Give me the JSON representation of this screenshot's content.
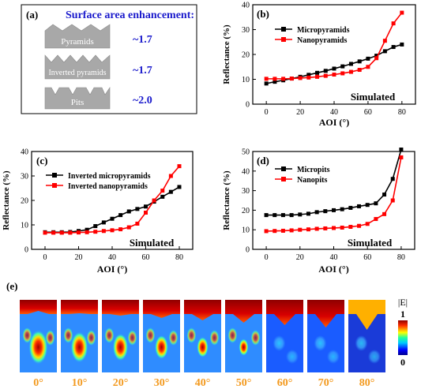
{
  "panel_a": {
    "letter": "(a)",
    "title": "Surface area enhancement:",
    "rows": [
      {
        "label": "Pyramids",
        "value": "~1.7",
        "shape": "pyramids"
      },
      {
        "label": "Inverted pyramids",
        "value": "~1.7",
        "shape": "inverted"
      },
      {
        "label": "Pits",
        "value": "~2.0",
        "shape": "pits"
      }
    ]
  },
  "chart_data": [
    {
      "panel": "(b)",
      "type": "line",
      "xlabel": "AOI (°)",
      "ylabel": "Reflectance (%)",
      "annotation": "Simulated",
      "xlim": [
        -8,
        88
      ],
      "ylim": [
        0,
        40
      ],
      "xticks": [
        0,
        20,
        40,
        60,
        80
      ],
      "yticks": [
        0,
        10,
        20,
        30,
        40
      ],
      "series": [
        {
          "name": "Micropyramids",
          "color": "#000000",
          "marker": "square",
          "x": [
            0,
            5,
            10,
            15,
            20,
            25,
            30,
            35,
            40,
            45,
            50,
            55,
            60,
            65,
            70,
            75,
            80
          ],
          "y": [
            8.3,
            9.0,
            9.6,
            10.3,
            11.0,
            11.8,
            12.6,
            13.4,
            14.3,
            15.2,
            16.2,
            17.2,
            18.3,
            19.5,
            21.3,
            23.0,
            24.0
          ]
        },
        {
          "name": "Nanopyramids",
          "color": "#ff0000",
          "marker": "square",
          "x": [
            0,
            5,
            10,
            15,
            20,
            25,
            30,
            35,
            40,
            45,
            50,
            55,
            60,
            65,
            70,
            75,
            80
          ],
          "y": [
            10.2,
            10.2,
            10.2,
            10.3,
            10.5,
            10.7,
            11.0,
            11.4,
            11.9,
            12.4,
            13.0,
            13.8,
            15.0,
            18.5,
            25.5,
            32.5,
            36.8
          ]
        }
      ]
    },
    {
      "panel": "(c)",
      "type": "line",
      "xlabel": "AOI (°)",
      "ylabel": "Reflectance (%)",
      "annotation": "Simulated",
      "xlim": [
        -8,
        88
      ],
      "ylim": [
        0,
        40
      ],
      "xticks": [
        0,
        20,
        40,
        60,
        80
      ],
      "yticks": [
        0,
        10,
        20,
        30,
        40
      ],
      "series": [
        {
          "name": "Inverted micropyramids",
          "color": "#000000",
          "marker": "square",
          "x": [
            0,
            5,
            10,
            15,
            20,
            25,
            30,
            35,
            40,
            45,
            50,
            55,
            60,
            65,
            70,
            75,
            80
          ],
          "y": [
            7.0,
            7.0,
            7.0,
            7.1,
            7.5,
            8.0,
            9.5,
            11.0,
            12.5,
            14.0,
            15.5,
            16.5,
            17.5,
            19.5,
            21.5,
            23.5,
            25.5
          ]
        },
        {
          "name": "Inverted nanopyramids",
          "color": "#ff0000",
          "marker": "square",
          "x": [
            0,
            5,
            10,
            15,
            20,
            25,
            30,
            35,
            40,
            45,
            50,
            55,
            60,
            65,
            70,
            75,
            80
          ],
          "y": [
            6.8,
            6.8,
            6.8,
            6.8,
            6.9,
            7.0,
            7.2,
            7.5,
            7.8,
            8.2,
            9.0,
            10.5,
            15.0,
            20.0,
            24.0,
            30.0,
            34.0
          ]
        }
      ]
    },
    {
      "panel": "(d)",
      "type": "line",
      "xlabel": "AOI (°)",
      "ylabel": "Reflectance (%)",
      "annotation": "Simulated",
      "xlim": [
        -8,
        88
      ],
      "ylim": [
        0,
        50
      ],
      "xticks": [
        0,
        20,
        40,
        60,
        80
      ],
      "yticks": [
        0,
        10,
        20,
        30,
        40,
        50
      ],
      "series": [
        {
          "name": "Micropits",
          "color": "#000000",
          "marker": "square",
          "x": [
            0,
            5,
            10,
            15,
            20,
            25,
            30,
            35,
            40,
            45,
            50,
            55,
            60,
            65,
            70,
            75,
            80
          ],
          "y": [
            17.5,
            17.5,
            17.5,
            17.5,
            17.8,
            18.2,
            19.0,
            19.5,
            20.0,
            20.5,
            21.2,
            22.0,
            22.7,
            23.5,
            28.0,
            36.0,
            51.0
          ]
        },
        {
          "name": "Nanopits",
          "color": "#ff0000",
          "marker": "square",
          "x": [
            0,
            5,
            10,
            15,
            20,
            25,
            30,
            35,
            40,
            45,
            50,
            55,
            60,
            65,
            70,
            75,
            80
          ],
          "y": [
            9.3,
            9.4,
            9.5,
            9.7,
            10.0,
            10.2,
            10.5,
            10.7,
            10.9,
            11.1,
            11.5,
            12.0,
            13.0,
            15.5,
            18.0,
            25.0,
            47.0
          ]
        }
      ]
    }
  ],
  "panel_e": {
    "letter": "(e)",
    "angles": [
      "0°",
      "10°",
      "20°",
      "30°",
      "40°",
      "50°",
      "60°",
      "70°",
      "80°"
    ],
    "colorbar_title": "|E|",
    "colorbar_max": "1",
    "colorbar_min": "0"
  }
}
